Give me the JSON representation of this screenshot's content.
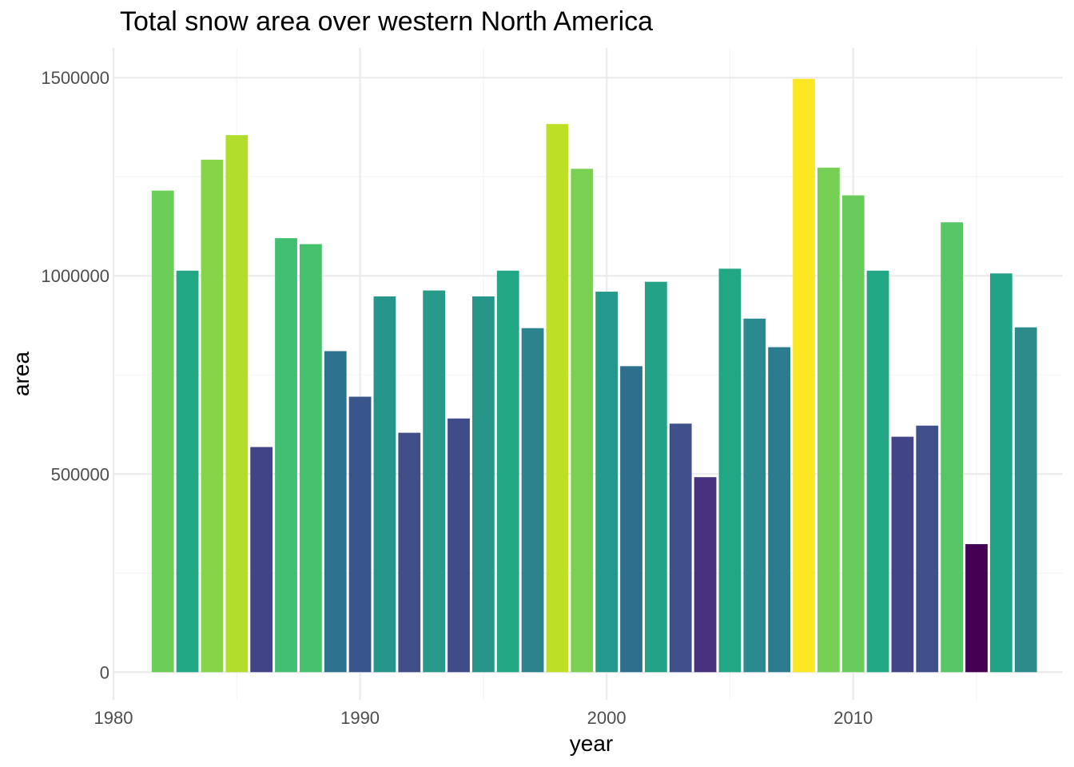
{
  "chart_data": {
    "type": "bar",
    "title": "Total snow area over western North America",
    "xlabel": "year",
    "ylabel": "area",
    "xlim": [
      1980,
      2018.5
    ],
    "ylim": [
      -70000,
      1575000
    ],
    "x_ticks": [
      1980,
      1990,
      2000,
      2010
    ],
    "x_tick_labels": [
      "1980",
      "1990",
      "2000",
      "2010"
    ],
    "y_ticks": [
      0,
      500000,
      1000000,
      1500000
    ],
    "y_tick_labels": [
      "0",
      "500000",
      "1000000",
      "1500000"
    ],
    "grid": true,
    "legend": "none",
    "x": [
      1982,
      1983,
      1984,
      1985,
      1986,
      1987,
      1988,
      1989,
      1990,
      1991,
      1992,
      1993,
      1994,
      1995,
      1996,
      1997,
      1998,
      1999,
      2000,
      2001,
      2002,
      2003,
      2004,
      2005,
      2006,
      2007,
      2008,
      2009,
      2010,
      2011,
      2012,
      2013,
      2014,
      2015,
      2016,
      2017
    ],
    "values": [
      1215000,
      1013000,
      1293000,
      1355000,
      568000,
      1095000,
      1080000,
      810000,
      695000,
      948000,
      604000,
      963000,
      640000,
      948000,
      1013000,
      868000,
      1383000,
      1270000,
      960000,
      772000,
      985000,
      627000,
      492000,
      1018000,
      892000,
      820000,
      1497000,
      1273000,
      1203000,
      1013000,
      594000,
      622000,
      1135000,
      323000,
      1006000,
      870000
    ],
    "colors": [
      "#6ccd5a",
      "#22a785",
      "#86d549",
      "#b2dd2d",
      "#414487",
      "#43bf71",
      "#48c16e",
      "#2c728e",
      "#39568c",
      "#26968b",
      "#404f88",
      "#279a89",
      "#3e4c8a",
      "#26968b",
      "#22a785",
      "#2c838e",
      "#bddf26",
      "#7ad151",
      "#25998a",
      "#2f6f8e",
      "#24a286",
      "#3f508a",
      "#46327e",
      "#22a785",
      "#2c898e",
      "#2d7b8e",
      "#fde725",
      "#75d054",
      "#67cc5c",
      "#22a785",
      "#414487",
      "#3f508a",
      "#56c667",
      "#440154",
      "#20a386",
      "#2d8b8c"
    ]
  }
}
